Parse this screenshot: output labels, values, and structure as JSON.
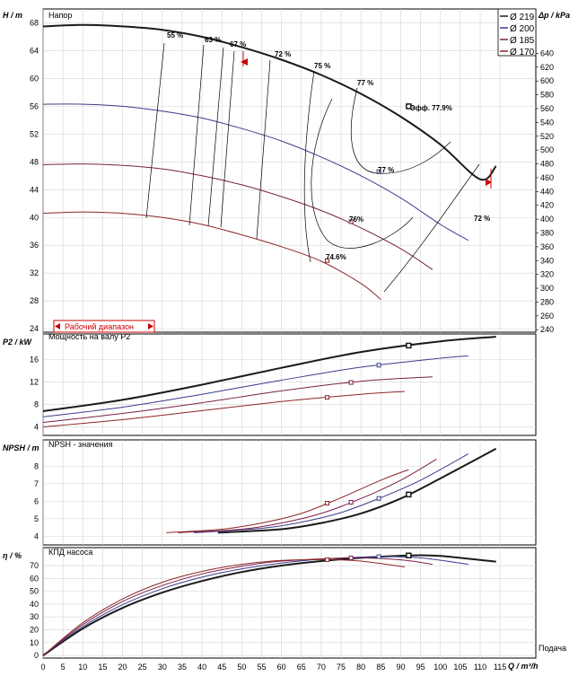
{
  "chart_data": [
    {
      "type": "line",
      "title": "Напор",
      "ylabel": "H / m",
      "y2label": "Δp / kPa",
      "ylim": [
        23.5,
        70
      ],
      "y_ticks": [
        24,
        28,
        32,
        36,
        40,
        44,
        48,
        52,
        56,
        60,
        64,
        68
      ],
      "y2_ticks": [
        240,
        260,
        280,
        300,
        320,
        340,
        360,
        380,
        400,
        420,
        440,
        460,
        480,
        500,
        520,
        540,
        560,
        580,
        600,
        620,
        640
      ],
      "legend_position": "top-right",
      "legend": [
        "Ø 219",
        "Ø 200",
        "Ø 185",
        "Ø 170"
      ],
      "series": [
        {
          "name": "Ø 219",
          "color": "#1a1a1a",
          "x": [
            0,
            10,
            20,
            30,
            40,
            50,
            60,
            70,
            80,
            90,
            100,
            110,
            114
          ],
          "y": [
            67.5,
            67.7,
            67.5,
            67.0,
            66.0,
            64.5,
            62.7,
            60.5,
            57.8,
            54.5,
            50.5,
            45.5,
            47.4
          ]
        },
        {
          "name": "Ø 200",
          "color": "#3c3c8c",
          "x": [
            0,
            10,
            20,
            30,
            40,
            50,
            60,
            70,
            80,
            90,
            100,
            107
          ],
          "y": [
            56.3,
            56.3,
            56.0,
            55.3,
            54.3,
            52.8,
            51.0,
            48.7,
            46.0,
            42.8,
            39.0,
            36.7
          ]
        },
        {
          "name": "Ø 185",
          "color": "#7a1f4a",
          "x": [
            0,
            10,
            20,
            30,
            40,
            50,
            60,
            70,
            80,
            90,
            98
          ],
          "y": [
            47.6,
            47.7,
            47.5,
            47.0,
            46.0,
            44.7,
            43.0,
            41.0,
            38.5,
            35.5,
            32.5
          ]
        },
        {
          "name": "Ø 170",
          "color": "#8c2626",
          "x": [
            0,
            10,
            20,
            30,
            40,
            50,
            60,
            70,
            80,
            85
          ],
          "y": [
            40.6,
            40.8,
            40.6,
            40.0,
            39.0,
            37.5,
            35.8,
            33.7,
            30.5,
            28.2
          ]
        }
      ],
      "efficiency_labels": [
        "55 %",
        "63 %",
        "67 %",
        "72 %",
        "75 %",
        "77 %",
        "77 %",
        "76%",
        "74.6%",
        "72 %"
      ],
      "operating_point_label": "Эфф. 77.9%",
      "operating_range_label": "Рабочий диапазон",
      "duty_points": [
        {
          "series": "Ø 219",
          "x": 92,
          "y": 56.0
        },
        {
          "series": "Ø 200",
          "x": 84.5,
          "y": 46.6
        },
        {
          "series": "Ø 185",
          "x": 77.5,
          "y": 39.4
        },
        {
          "series": "Ø 170",
          "x": 71.5,
          "y": 33.8
        }
      ]
    },
    {
      "type": "line",
      "title": "Мощность на валу P2",
      "ylabel": "P2 / kW",
      "ylim": [
        2.5,
        20.5
      ],
      "y_ticks": [
        4,
        8,
        12,
        16
      ],
      "series": [
        {
          "name": "Ø 219",
          "x": [
            0,
            20,
            40,
            60,
            80,
            100,
            114
          ],
          "y": [
            6.8,
            8.8,
            11.5,
            14.5,
            17.3,
            19.2,
            20.0
          ]
        },
        {
          "name": "Ø 200",
          "x": [
            0,
            20,
            40,
            60,
            80,
            100,
            107
          ],
          "y": [
            5.8,
            7.5,
            9.8,
            12.3,
            14.6,
            16.2,
            16.6
          ]
        },
        {
          "name": "Ø 185",
          "x": [
            0,
            20,
            40,
            60,
            80,
            98
          ],
          "y": [
            4.8,
            6.4,
            8.3,
            10.4,
            12.1,
            12.9
          ]
        },
        {
          "name": "Ø 170",
          "x": [
            0,
            20,
            40,
            60,
            80,
            91
          ],
          "y": [
            4.0,
            5.3,
            6.9,
            8.5,
            9.8,
            10.3
          ]
        }
      ]
    },
    {
      "type": "line",
      "title": "NPSH - значения",
      "ylabel": "NPSH / m",
      "ylim": [
        3.5,
        9.5
      ],
      "y_ticks": [
        4,
        5,
        6,
        7,
        8
      ],
      "series": [
        {
          "name": "Ø 219",
          "x": [
            44,
            60,
            70,
            80,
            90,
            100,
            114
          ],
          "y": [
            4.2,
            4.4,
            4.75,
            5.3,
            6.15,
            7.3,
            9.0
          ]
        },
        {
          "name": "Ø 200",
          "x": [
            38,
            55,
            65,
            75,
            85,
            95,
            107
          ],
          "y": [
            4.2,
            4.45,
            4.8,
            5.35,
            6.2,
            7.2,
            8.7
          ]
        },
        {
          "name": "Ø 185",
          "x": [
            34,
            50,
            60,
            70,
            80,
            90,
            99
          ],
          "y": [
            4.2,
            4.4,
            4.75,
            5.3,
            6.15,
            7.2,
            8.4
          ]
        },
        {
          "name": "Ø 170",
          "x": [
            31,
            45,
            55,
            65,
            75,
            85,
            92
          ],
          "y": [
            4.2,
            4.4,
            4.75,
            5.3,
            6.2,
            7.2,
            7.8
          ]
        }
      ]
    },
    {
      "type": "line",
      "title": "КПД насоса",
      "ylabel": "η / %",
      "ylim": [
        -2,
        84
      ],
      "y_ticks": [
        0,
        10,
        20,
        30,
        40,
        50,
        60,
        70
      ],
      "xlabel": "Q / m³/h",
      "xlabel_extra": "Подача",
      "x_ticks": [
        0,
        5,
        10,
        15,
        20,
        25,
        30,
        35,
        40,
        45,
        50,
        55,
        60,
        65,
        70,
        75,
        80,
        85,
        90,
        95,
        100,
        105,
        110,
        115
      ],
      "xlim": [
        0,
        124
      ],
      "series": [
        {
          "name": "Ø 219",
          "x": [
            0,
            10,
            20,
            30,
            40,
            50,
            60,
            70,
            80,
            92,
            100,
            114
          ],
          "y": [
            0,
            21,
            37,
            49,
            58,
            65,
            70,
            73.5,
            76,
            77.9,
            77.5,
            73
          ]
        },
        {
          "name": "Ø 200",
          "x": [
            0,
            10,
            20,
            30,
            40,
            50,
            60,
            70,
            84.5,
            95,
            107
          ],
          "y": [
            0,
            22.5,
            39.5,
            52,
            61,
            67.5,
            72,
            75,
            77,
            76,
            71
          ]
        },
        {
          "name": "Ø 185",
          "x": [
            0,
            10,
            20,
            30,
            40,
            50,
            60,
            77.5,
            90,
            98
          ],
          "y": [
            0,
            24,
            42,
            54.5,
            63.5,
            69.5,
            73.5,
            76,
            74.5,
            71
          ]
        },
        {
          "name": "Ø 170",
          "x": [
            0,
            10,
            20,
            30,
            40,
            50,
            60,
            71.5,
            80,
            91
          ],
          "y": [
            0,
            25.5,
            44,
            57,
            65.5,
            71,
            74,
            74.6,
            73.5,
            69
          ]
        }
      ]
    }
  ]
}
